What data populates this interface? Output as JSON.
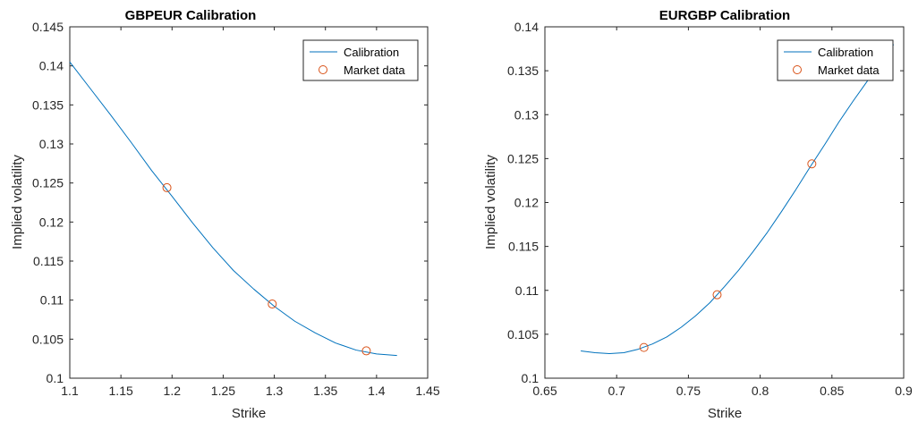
{
  "chart_data": [
    {
      "type": "line",
      "title": "GBPEUR Calibration",
      "xlabel": "Strike",
      "ylabel": "Implied volatility",
      "xlim": [
        1.1,
        1.45
      ],
      "ylim": [
        0.1,
        0.145
      ],
      "xticks": [
        1.1,
        1.15,
        1.2,
        1.25,
        1.3,
        1.35,
        1.4,
        1.45
      ],
      "xtick_labels": [
        "1.1",
        "1.15",
        "1.2",
        "1.25",
        "1.3",
        "1.35",
        "1.4",
        "1.45"
      ],
      "yticks": [
        0.1,
        0.105,
        0.11,
        0.115,
        0.12,
        0.125,
        0.13,
        0.135,
        0.14,
        0.145
      ],
      "ytick_labels": [
        "0.1",
        "0.105",
        "0.11",
        "0.115",
        "0.12",
        "0.125",
        "0.13",
        "0.135",
        "0.14",
        "0.145"
      ],
      "grid": false,
      "legend_position": "top-right",
      "series": [
        {
          "name": "Calibration",
          "kind": "line",
          "color": "#0072BD",
          "x": [
            1.1,
            1.12,
            1.14,
            1.16,
            1.18,
            1.2,
            1.22,
            1.24,
            1.26,
            1.28,
            1.3,
            1.32,
            1.34,
            1.36,
            1.38,
            1.4,
            1.42
          ],
          "y": [
            0.1405,
            0.1371,
            0.1337,
            0.1302,
            0.1266,
            0.1233,
            0.1199,
            0.1167,
            0.1138,
            0.1114,
            0.1092,
            0.1073,
            0.1058,
            0.1045,
            0.1036,
            0.1031,
            0.1029
          ]
        },
        {
          "name": "Market data",
          "kind": "scatter",
          "color": "#D95319",
          "x": [
            1.195,
            1.298,
            1.39
          ],
          "y": [
            0.1244,
            0.1095,
            0.1035
          ]
        }
      ]
    },
    {
      "type": "line",
      "title": "EURGBP Calibration",
      "xlabel": "Strike",
      "ylabel": "Implied volatility",
      "xlim": [
        0.65,
        0.9
      ],
      "ylim": [
        0.1,
        0.14
      ],
      "xticks": [
        0.65,
        0.7,
        0.75,
        0.8,
        0.85,
        0.9
      ],
      "xtick_labels": [
        "0.65",
        "0.7",
        "0.75",
        "0.8",
        "0.85",
        "0.9"
      ],
      "yticks": [
        0.1,
        0.105,
        0.11,
        0.115,
        0.12,
        0.125,
        0.13,
        0.135,
        0.14
      ],
      "ytick_labels": [
        "0.1",
        "0.105",
        "0.11",
        "0.115",
        "0.12",
        "0.125",
        "0.13",
        "0.135",
        "0.14"
      ],
      "grid": false,
      "legend_position": "top-right",
      "series": [
        {
          "name": "Calibration",
          "kind": "line",
          "color": "#0072BD",
          "x": [
            0.675,
            0.685,
            0.695,
            0.705,
            0.715,
            0.725,
            0.735,
            0.745,
            0.755,
            0.765,
            0.775,
            0.785,
            0.795,
            0.805,
            0.815,
            0.825,
            0.835,
            0.845,
            0.855,
            0.865,
            0.875,
            0.885,
            0.893
          ],
          "y": [
            0.1031,
            0.1029,
            0.1028,
            0.1029,
            0.1033,
            0.1039,
            0.1047,
            0.1058,
            0.1071,
            0.1086,
            0.1104,
            0.1123,
            0.1144,
            0.1166,
            0.119,
            0.1215,
            0.1241,
            0.1266,
            0.1292,
            0.1316,
            0.1339,
            0.1362,
            0.138
          ]
        },
        {
          "name": "Market data",
          "kind": "scatter",
          "color": "#D95319",
          "x": [
            0.719,
            0.77,
            0.836
          ],
          "y": [
            0.1035,
            0.1095,
            0.1244
          ]
        }
      ]
    }
  ]
}
